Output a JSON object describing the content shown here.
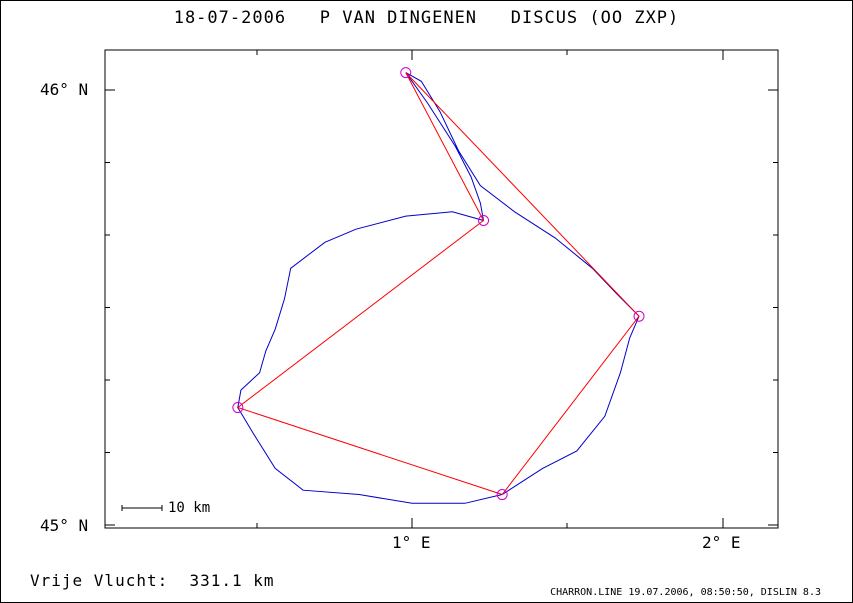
{
  "title": "18-07-2006   P VAN DINGENEN   DISCUS (OO ZXP)",
  "axes": {
    "lat_labels": [
      "46° N",
      "45° N"
    ],
    "lon_labels": [
      "1° E",
      "2° E"
    ]
  },
  "scale_bar_label": "10 km",
  "footer": {
    "free_flight": "Vrije Vlucht:  331.1 km",
    "credit": "CHARRON.LINE 19.07.2006, 08:50:50, DISLIN 8.3"
  },
  "colors": {
    "track": "#0000cc",
    "task": "#ff0000",
    "turnpoint": "#cc00cc"
  },
  "turnpoints": [
    {
      "lon": 0.98,
      "lat": 46.04
    },
    {
      "lon": 1.23,
      "lat": 45.7
    },
    {
      "lon": 1.73,
      "lat": 45.48
    },
    {
      "lon": 1.29,
      "lat": 45.07
    },
    {
      "lon": 0.44,
      "lat": 45.27
    }
  ],
  "task_route": [
    {
      "lon": 0.98,
      "lat": 46.04
    },
    {
      "lon": 1.73,
      "lat": 45.48
    },
    {
      "lon": 1.29,
      "lat": 45.07
    },
    {
      "lon": 0.44,
      "lat": 45.27
    },
    {
      "lon": 1.23,
      "lat": 45.7
    },
    {
      "lon": 0.98,
      "lat": 46.04
    }
  ],
  "track": [
    {
      "lon": 0.98,
      "lat": 46.04
    },
    {
      "lon": 1.05,
      "lat": 45.97
    },
    {
      "lon": 1.14,
      "lat": 45.87
    },
    {
      "lon": 1.19,
      "lat": 45.8
    },
    {
      "lon": 1.22,
      "lat": 45.74
    },
    {
      "lon": 1.23,
      "lat": 45.7
    },
    {
      "lon": 1.13,
      "lat": 45.72
    },
    {
      "lon": 0.98,
      "lat": 45.71
    },
    {
      "lon": 0.82,
      "lat": 45.68
    },
    {
      "lon": 0.72,
      "lat": 45.65
    },
    {
      "lon": 0.61,
      "lat": 45.59
    },
    {
      "lon": 0.59,
      "lat": 45.52
    },
    {
      "lon": 0.56,
      "lat": 45.45
    },
    {
      "lon": 0.53,
      "lat": 45.4
    },
    {
      "lon": 0.51,
      "lat": 45.35
    },
    {
      "lon": 0.45,
      "lat": 45.31
    },
    {
      "lon": 0.44,
      "lat": 45.27
    },
    {
      "lon": 0.49,
      "lat": 45.21
    },
    {
      "lon": 0.56,
      "lat": 45.13
    },
    {
      "lon": 0.65,
      "lat": 45.08
    },
    {
      "lon": 0.83,
      "lat": 45.07
    },
    {
      "lon": 1.0,
      "lat": 45.05
    },
    {
      "lon": 1.17,
      "lat": 45.05
    },
    {
      "lon": 1.29,
      "lat": 45.07
    },
    {
      "lon": 1.42,
      "lat": 45.13
    },
    {
      "lon": 1.53,
      "lat": 45.17
    },
    {
      "lon": 1.62,
      "lat": 45.25
    },
    {
      "lon": 1.67,
      "lat": 45.35
    },
    {
      "lon": 1.7,
      "lat": 45.43
    },
    {
      "lon": 1.73,
      "lat": 45.48
    },
    {
      "lon": 1.66,
      "lat": 45.53
    },
    {
      "lon": 1.58,
      "lat": 45.59
    },
    {
      "lon": 1.46,
      "lat": 45.66
    },
    {
      "lon": 1.33,
      "lat": 45.72
    },
    {
      "lon": 1.22,
      "lat": 45.78
    },
    {
      "lon": 1.15,
      "lat": 45.86
    },
    {
      "lon": 1.09,
      "lat": 45.95
    },
    {
      "lon": 1.03,
      "lat": 46.02
    },
    {
      "lon": 0.98,
      "lat": 46.04
    }
  ]
}
